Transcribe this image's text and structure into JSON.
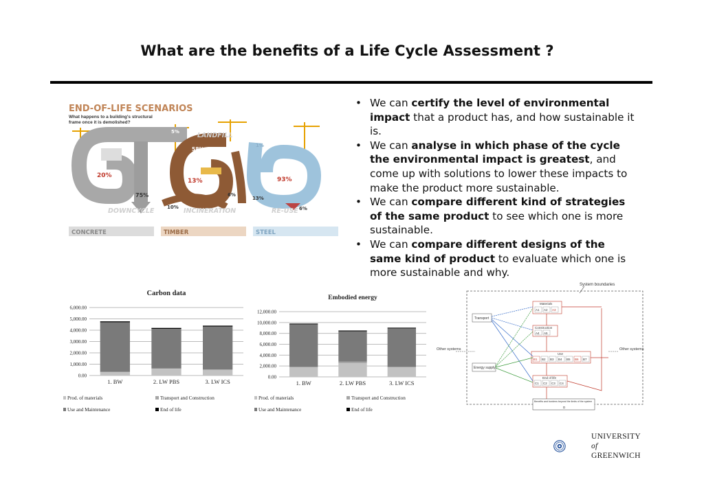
{
  "slide": {
    "title": "What are the benefits of a Life Cycle Assessment ?"
  },
  "infographic": {
    "heading": "END-OF-LIFE SCENARIOS",
    "subheading_line1": "What happens to a building's structural",
    "subheading_line2": "frame once it is demolished?",
    "labels": {
      "landfill": "LANDFILL",
      "downcycle": "DOWNCYCLE",
      "incineration": "INCINERATION",
      "reuse": "RE-USE"
    },
    "materials": {
      "concrete": "CONCRETE",
      "timber": "TIMBER",
      "steel": "STEEL"
    },
    "concrete": {
      "landfill": "5%",
      "downcycle": "75%",
      "reuse": "20%"
    },
    "timber": {
      "landfill": "58%",
      "reuse": "13%",
      "incineration": "10%",
      "other": "6%"
    },
    "steel": {
      "landfill": "1%",
      "reuse": "93%",
      "downcycle": "13%",
      "other": "6%"
    }
  },
  "bullets": [
    {
      "pre": "We can ",
      "bold": "certify the level of environmental impact",
      "post": " that a product has, and how sustainable it is."
    },
    {
      "pre": "We can ",
      "bold": "analyse in which phase of the cycle the environmental impact is greatest",
      "post": ", and come up with solutions to lower these impacts to make the product more sustainable."
    },
    {
      "pre": "We can ",
      "bold": "compare different kind of strategies of the same product",
      "post": " to see which one is more sustainable."
    },
    {
      "pre": "We can ",
      "bold": "compare different designs of the same kind of product",
      "post": " to evaluate which one is more sustainable and why."
    }
  ],
  "chart_data": [
    {
      "type": "bar",
      "stacked": true,
      "title": "Carbon data",
      "categories": [
        "1. BW",
        "2. LW PBS",
        "3. LW ICS"
      ],
      "y_ticks": [
        "0.00",
        "1,000.00",
        "2,000.00",
        "3,000.00",
        "4,000.00",
        "5,000.00",
        "6,000.00"
      ],
      "ylim": [
        0,
        6000
      ],
      "series": [
        {
          "name": "Prod. of materials",
          "color": "#c2c2c2",
          "values": [
            300,
            600,
            500
          ]
        },
        {
          "name": "Transport and Construction",
          "color": "#a6a6a6",
          "values": [
            20,
            20,
            20
          ]
        },
        {
          "name": "Use and Maintenance",
          "color": "#7a7a7a",
          "values": [
            4380,
            3500,
            3800
          ]
        },
        {
          "name": "End of life",
          "color": "#000000",
          "values": [
            80,
            80,
            80
          ]
        }
      ],
      "legend_position": "bottom"
    },
    {
      "type": "bar",
      "stacked": true,
      "title": "Embodied energy",
      "categories": [
        "1. BW",
        "2. LW PBS",
        "3. LW ICS"
      ],
      "y_ticks": [
        "0.00",
        "2,000.00",
        "4,000.00",
        "6,000.00",
        "8,000.00",
        "10,000.00",
        "12,000.00"
      ],
      "ylim": [
        0,
        12000
      ],
      "series": [
        {
          "name": "Prod. of materials",
          "color": "#c2c2c2",
          "values": [
            1800,
            2500,
            1800
          ]
        },
        {
          "name": "Transport and Construction",
          "color": "#a6a6a6",
          "values": [
            20,
            300,
            20
          ]
        },
        {
          "name": "Use and Maintenance",
          "color": "#7a7a7a",
          "values": [
            7850,
            5600,
            7100
          ]
        },
        {
          "name": "End of life",
          "color": "#000000",
          "values": [
            130,
            130,
            130
          ]
        }
      ],
      "legend_position": "bottom"
    }
  ],
  "system_diagram": {
    "boundary_label": "System boundaries",
    "other_systems_left": "Other systems",
    "other_systems_right": "Other systems",
    "transport": "Transport",
    "energy": "Energy supply",
    "materials": {
      "title": "Materials",
      "cells": [
        "A1",
        "A2",
        "A3"
      ]
    },
    "construction": {
      "title": "Construction",
      "cells": [
        "A4",
        "A5"
      ]
    },
    "use": {
      "title": "Use",
      "cells": [
        "B1",
        "B2",
        "B3",
        "B4",
        "B5",
        "B6",
        "B7"
      ]
    },
    "end_of_life": {
      "title": "End of life",
      "cells": [
        "C1",
        "C2",
        "C3",
        "C4"
      ]
    },
    "benefits": {
      "title": "Benefits and burdens beyond the limits of the system",
      "cell": "D"
    }
  },
  "logo": {
    "line1": "UNIVERSITY",
    "line2": "of",
    "line3": "GREENWICH"
  }
}
